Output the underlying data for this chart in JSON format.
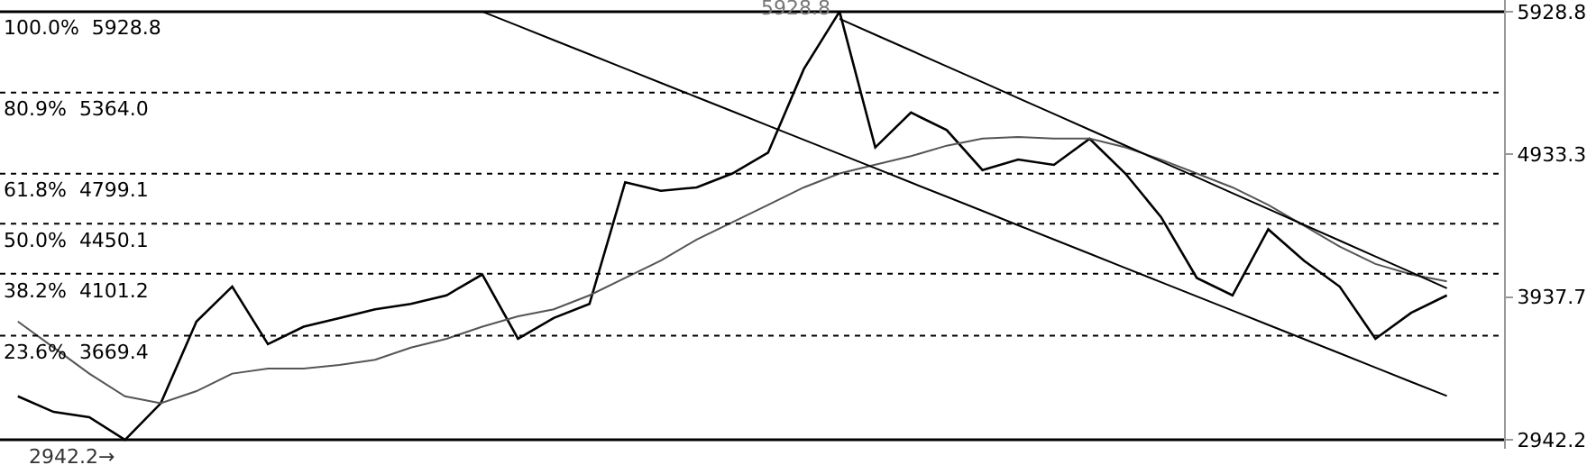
{
  "chart_data": {
    "type": "line",
    "categories": [
      null,
      null,
      null,
      null,
      null,
      null,
      null,
      null,
      null,
      null,
      null,
      null,
      null,
      null,
      null,
      null,
      null,
      null,
      null,
      null,
      null,
      null,
      null,
      null,
      null,
      null,
      null,
      null,
      null,
      null,
      null,
      null,
      null,
      null,
      null,
      null,
      null,
      null,
      null,
      null,
      null
    ],
    "series": [
      {
        "color": "#000000",
        "values": [
          3246,
          3137,
          3100,
          2942.2,
          3197,
          3768,
          4011,
          3610,
          3731,
          3792,
          3853,
          3890,
          3950,
          4096,
          3647,
          3792,
          3890,
          4739,
          4679,
          4703,
          4800,
          4945,
          5528,
          5928.8,
          4982,
          5225,
          5103,
          4824,
          4897,
          4860,
          5042,
          4800,
          4496,
          4071,
          3950,
          4411,
          4192,
          4011,
          3647,
          3828,
          3950
        ]
      },
      {
        "color": "#555555",
        "values": [
          3768,
          3586,
          3404,
          3246,
          3197,
          3282,
          3404,
          3440,
          3440,
          3465,
          3501,
          3586,
          3647,
          3732,
          3804,
          3853,
          3950,
          4072,
          4193,
          4339,
          4460,
          4581,
          4703,
          4800,
          4861,
          4921,
          4994,
          5043,
          5055,
          5043,
          5043,
          4982,
          4897,
          4800,
          4703,
          4581,
          4436,
          4290,
          4169,
          4096,
          4047
        ]
      },
      {
        "color": "#000000",
        "values": [
          null,
          null,
          null,
          null,
          null,
          null,
          null,
          null,
          null,
          null,
          null,
          null,
          null,
          5929,
          5830,
          5730,
          5631,
          5532,
          5432,
          5333,
          5234,
          5134,
          5035,
          4936,
          4837,
          4737,
          4638,
          4539,
          4439,
          4340,
          4241,
          4141,
          4042,
          3943,
          3844,
          3744,
          3645,
          3546,
          3446,
          3347,
          3248
        ]
      },
      {
        "color": "#000000",
        "values": [
          null,
          null,
          null,
          null,
          null,
          null,
          null,
          null,
          null,
          null,
          null,
          null,
          null,
          null,
          null,
          null,
          null,
          null,
          null,
          null,
          null,
          null,
          null,
          5879,
          5768,
          5658,
          5547,
          5437,
          5326,
          5216,
          5105,
          4995,
          4884,
          4774,
          4663,
          4553,
          4442,
          4332,
          4221,
          4111,
          4000
        ]
      }
    ],
    "ylim": [
      2880,
      6010
    ],
    "yticks": [
      2942.2,
      3937.7,
      4933.3,
      5928.8
    ],
    "tick_labels": "y",
    "grid": false,
    "marker": "none",
    "line_style": "solid",
    "ref_lines": [
      {
        "axis": "y",
        "value": 5928.8,
        "label": "100.0%  5928.8",
        "line_style": "solid"
      },
      {
        "axis": "y",
        "value": 5364.0,
        "label": "80.9%  5364.0",
        "line_style": "dotted"
      },
      {
        "axis": "y",
        "value": 4799.1,
        "label": "61.8%  4799.1",
        "line_style": "dotted"
      },
      {
        "axis": "y",
        "value": 4450.1,
        "label": "50.0%  4450.1",
        "line_style": "dotted"
      },
      {
        "axis": "y",
        "value": 4101.2,
        "label": "38.2%  4101.2",
        "line_style": "dotted"
      },
      {
        "axis": "y",
        "value": 3669.4,
        "label": "23.6%  3669.4",
        "line_style": "dotted"
      },
      {
        "axis": "y",
        "value": 2942.2,
        "label": null,
        "line_style": "solid"
      }
    ],
    "annotations": [
      {
        "text": "5928.8",
        "y": 5928.8
      },
      {
        "text": "2942.2→",
        "y": 2942.2
      }
    ]
  }
}
